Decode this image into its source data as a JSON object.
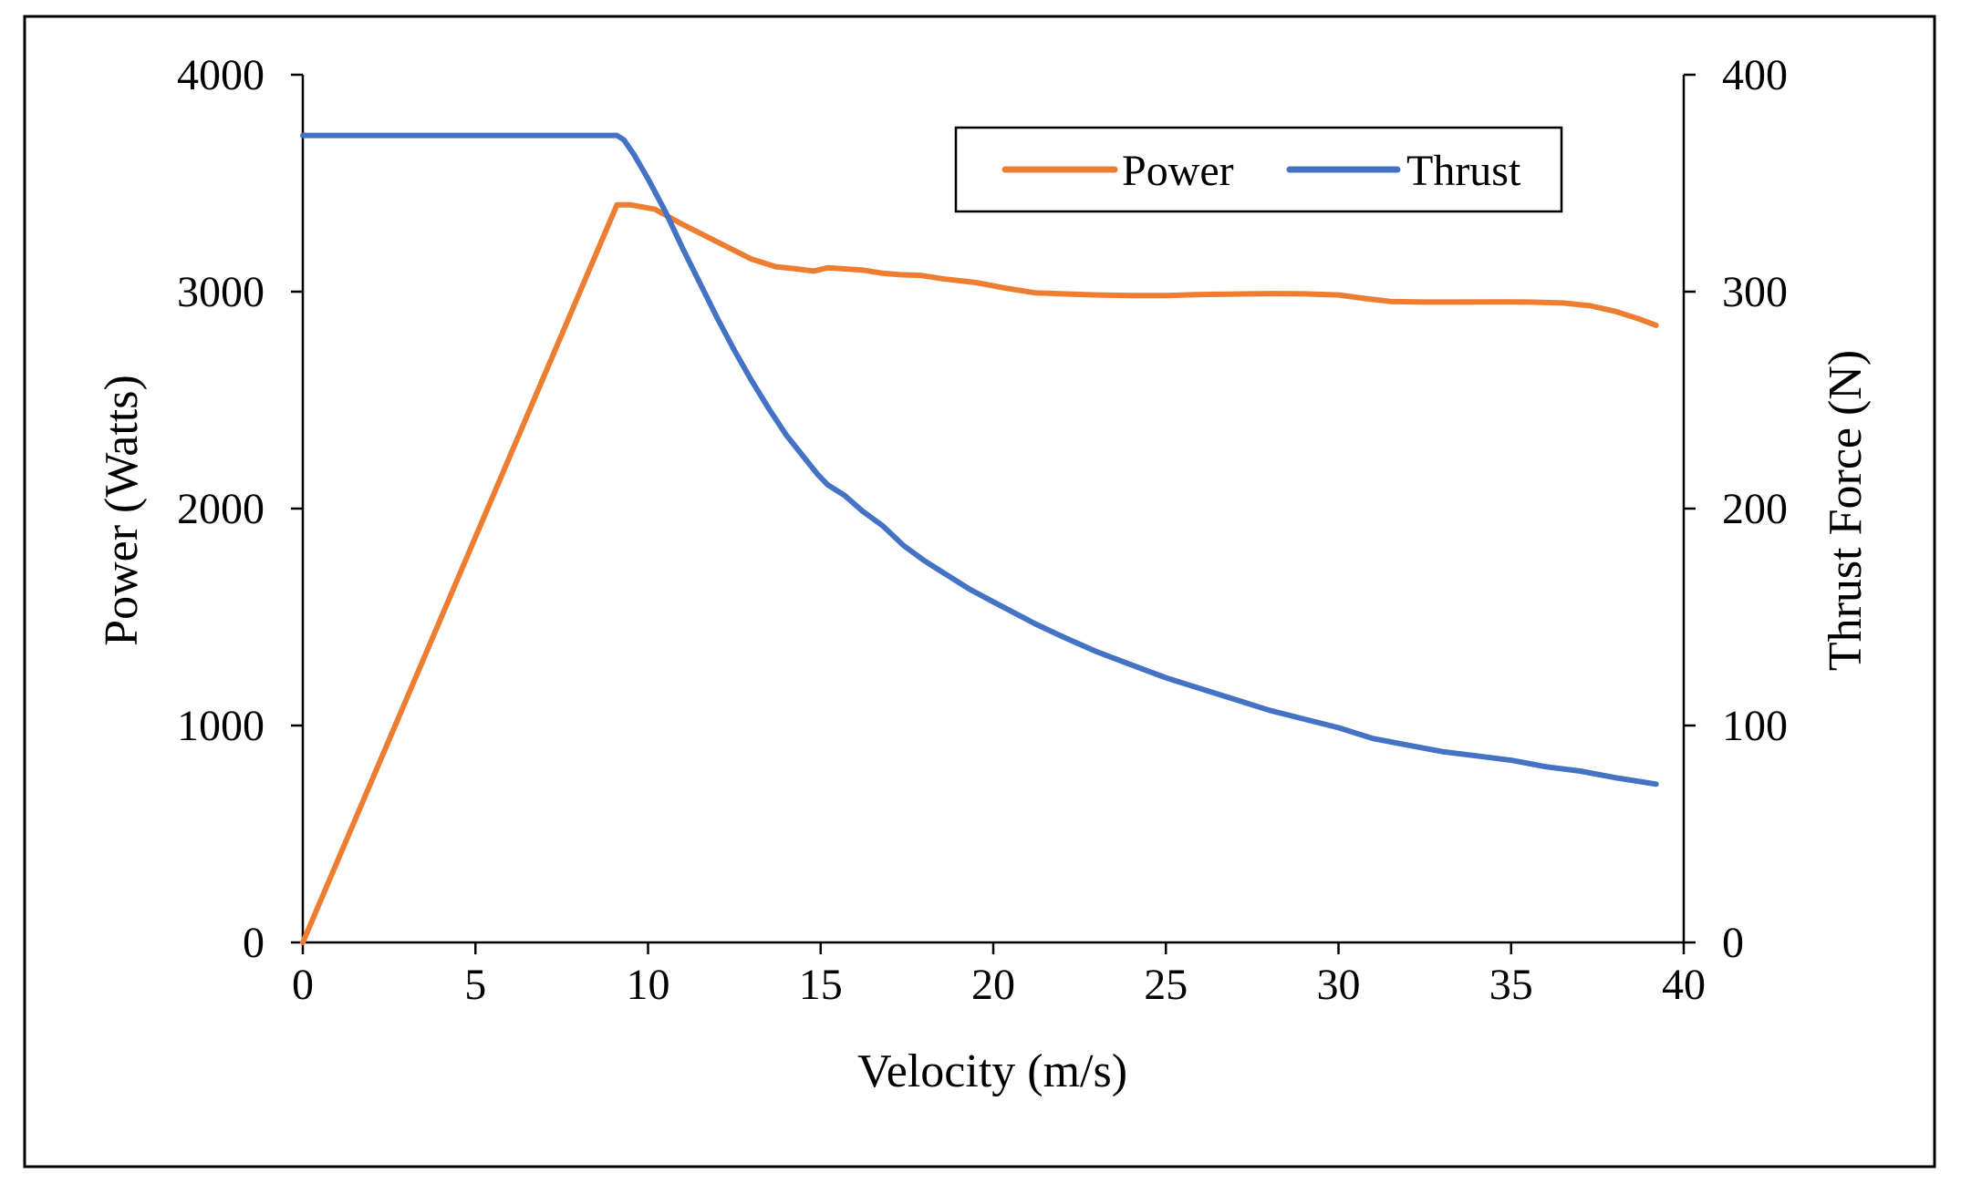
{
  "chart_data": {
    "type": "line",
    "title": "",
    "xlabel": "Velocity (m/s)",
    "ylabel": "Power (Watts)",
    "y2label": "Thrust Force (N)",
    "xlim": [
      0,
      40
    ],
    "ylim": [
      0,
      4000
    ],
    "y2lim": [
      0,
      400
    ],
    "xticks": [
      "0",
      "5",
      "10",
      "15",
      "20",
      "25",
      "30",
      "35",
      "40"
    ],
    "yticks": [
      "0",
      "1000",
      "2000",
      "3000",
      "4000"
    ],
    "y2ticks": [
      "0",
      "100",
      "200",
      "300",
      "400"
    ],
    "grid": false,
    "legend_position": "top-right",
    "series": [
      {
        "name": "Power",
        "axis": "left",
        "color": "#ED7D31",
        "x": [
          0,
          9.1,
          9.5,
          10.2,
          11,
          12,
          13,
          13.7,
          14.3,
          14.8,
          15.2,
          16.2,
          16.8,
          17.3,
          17.9,
          18.5,
          19.5,
          20.4,
          21.2,
          22,
          23,
          24,
          25,
          26,
          27,
          28,
          29,
          30,
          30.8,
          31.5,
          32.5,
          33.5,
          34.5,
          35.5,
          36.5,
          37.3,
          38,
          38.7,
          39.2
        ],
        "values": [
          0,
          3400,
          3400,
          3380,
          3310,
          3230,
          3150,
          3115,
          3105,
          3095,
          3110,
          3100,
          3085,
          3078,
          3075,
          3060,
          3042,
          3015,
          2995,
          2990,
          2985,
          2982,
          2982,
          2987,
          2989,
          2991,
          2990,
          2985,
          2968,
          2955,
          2952,
          2952,
          2953,
          2952,
          2948,
          2935,
          2910,
          2875,
          2845
        ]
      },
      {
        "name": "Thrust",
        "axis": "right",
        "color": "#4472C4",
        "x": [
          0,
          5,
          8,
          9.1,
          9.3,
          9.6,
          10,
          10.5,
          11,
          11.5,
          12,
          12.5,
          13,
          13.5,
          14,
          14.5,
          14.9,
          15.2,
          15.7,
          16.2,
          16.8,
          17.4,
          18,
          18.6,
          19.3,
          20,
          20.6,
          21.2,
          22,
          23,
          24,
          25,
          26,
          27,
          28,
          29,
          30,
          31,
          32,
          33,
          34,
          35,
          36,
          37,
          38,
          39.2
        ],
        "values": [
          372,
          372,
          372,
          372,
          370,
          363,
          352,
          337,
          320,
          304,
          288,
          273,
          259,
          246,
          234,
          224,
          216,
          211,
          206,
          199,
          192,
          183,
          176,
          170,
          163,
          157,
          152,
          147,
          141,
          134,
          128,
          122,
          117,
          112,
          107,
          103,
          99,
          94,
          91,
          88,
          86,
          84,
          81,
          79,
          76,
          73
        ]
      }
    ]
  }
}
